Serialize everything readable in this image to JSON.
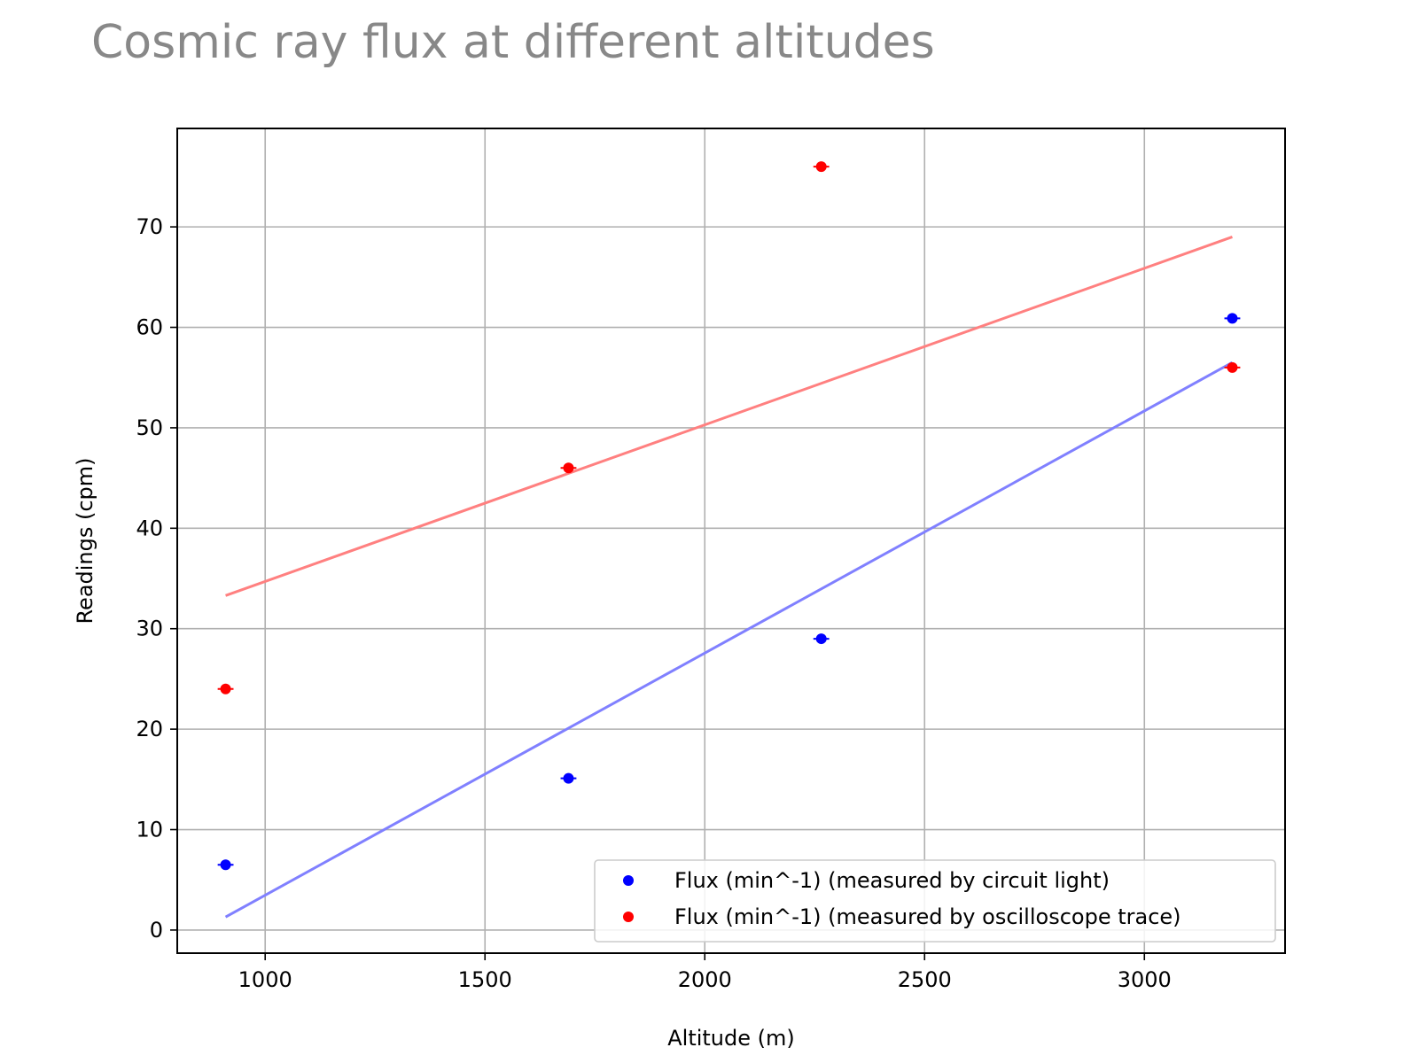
{
  "chart_data": {
    "type": "scatter",
    "title": "Cosmic ray flux at different altitudes",
    "xlabel": "Altitude (m)",
    "ylabel": "Readings (cpm)",
    "xlim": [
      800,
      3320
    ],
    "ylim": [
      -2.3,
      79.8
    ],
    "xticks": [
      1000,
      1500,
      2000,
      2500,
      3000
    ],
    "yticks": [
      0,
      10,
      20,
      30,
      40,
      50,
      60,
      70
    ],
    "grid": true,
    "legend_position": "lower-right",
    "series": [
      {
        "name": "Flux (min^-1) (measured by circuit light)",
        "color": "#0000ff",
        "x": [
          910,
          1690,
          2265,
          3200
        ],
        "y": [
          6.5,
          15.1,
          29.0,
          60.9
        ],
        "x_error": [
          18,
          18,
          18,
          18
        ],
        "fit": {
          "x": [
            910,
            3200
          ],
          "y": [
            1.3,
            56.5
          ],
          "color": "#8080ff"
        }
      },
      {
        "name": "Flux (min^-1) (measured by oscilloscope trace)",
        "color": "#ff0000",
        "x": [
          910,
          1690,
          2265,
          3200
        ],
        "y": [
          24.0,
          46.0,
          76.0,
          56.0
        ],
        "x_error": [
          18,
          18,
          18,
          18
        ],
        "fit": {
          "x": [
            910,
            3200
          ],
          "y": [
            33.3,
            69.0
          ],
          "color": "#ff8080"
        }
      }
    ]
  }
}
